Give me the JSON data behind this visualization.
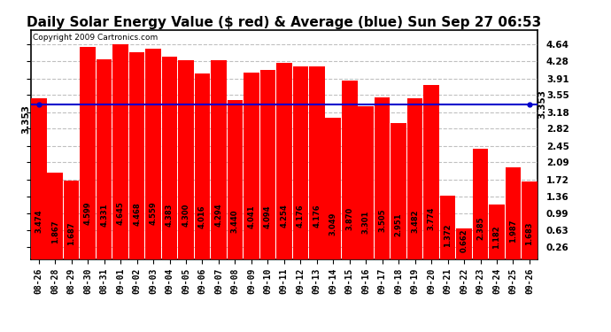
{
  "title": "Daily Solar Energy Value ($ red) & Average (blue) Sun Sep 27 06:53",
  "copyright": "Copyright 2009 Cartronics.com",
  "average": 3.353,
  "average_label": "3.353",
  "bar_color": "#ff0000",
  "avg_line_color": "#0000cc",
  "background_color": "#ffffff",
  "plot_bg_color": "#ffffff",
  "grid_color": "#c0c0c0",
  "categories": [
    "08-26",
    "08-28",
    "08-29",
    "08-30",
    "08-31",
    "09-01",
    "09-02",
    "09-03",
    "09-04",
    "09-05",
    "09-06",
    "09-07",
    "09-08",
    "09-09",
    "09-10",
    "09-11",
    "09-12",
    "09-13",
    "09-14",
    "09-15",
    "09-16",
    "09-17",
    "09-18",
    "09-19",
    "09-20",
    "09-21",
    "09-22",
    "09-23",
    "09-24",
    "09-25",
    "09-26"
  ],
  "values": [
    3.474,
    1.867,
    1.687,
    4.599,
    4.331,
    4.645,
    4.468,
    4.559,
    4.383,
    4.3,
    4.016,
    4.294,
    3.44,
    4.041,
    4.094,
    4.254,
    4.176,
    4.176,
    3.049,
    3.87,
    3.301,
    3.505,
    2.951,
    3.482,
    3.774,
    1.372,
    0.662,
    2.385,
    1.182,
    1.987,
    1.683
  ],
  "ylim_min": 0.0,
  "ylim_max": 4.96,
  "yticks": [
    0.26,
    0.63,
    0.99,
    1.36,
    1.72,
    2.09,
    2.45,
    2.82,
    3.18,
    3.55,
    3.91,
    4.28,
    4.64
  ],
  "title_fontsize": 11,
  "tick_fontsize": 7,
  "bar_value_fontsize": 6,
  "copyright_fontsize": 6.5,
  "avg_label_fontsize": 7.5
}
